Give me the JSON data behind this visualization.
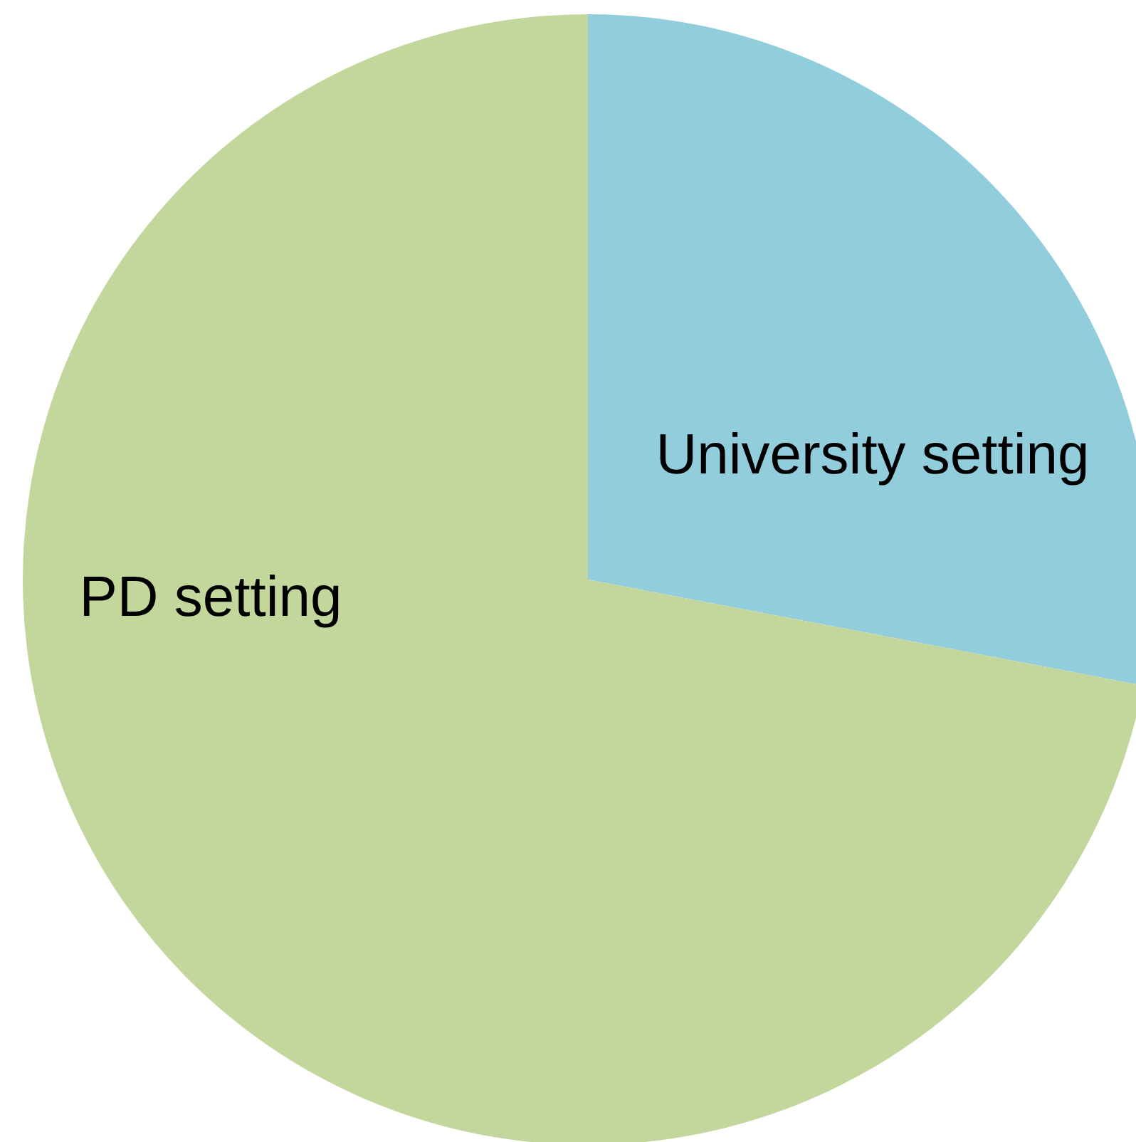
{
  "chart_data": {
    "type": "pie",
    "categories": [
      "University setting",
      "PD setting"
    ],
    "values": [
      28,
      72
    ],
    "colors": [
      "#92cddc",
      "#c3d69b"
    ],
    "legend": false
  }
}
